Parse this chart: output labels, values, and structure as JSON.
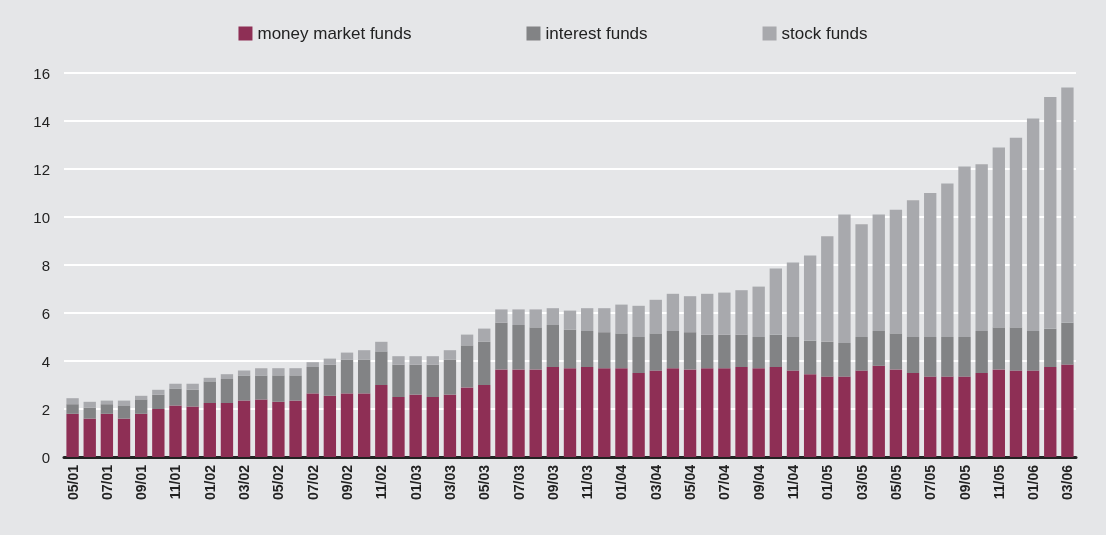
{
  "chart_data": {
    "type": "bar",
    "stacked": true,
    "categories": [
      "05/01",
      null,
      "07/01",
      null,
      "09/01",
      null,
      "11/01",
      null,
      "01/02",
      null,
      "03/02",
      null,
      "05/02",
      null,
      "07/02",
      null,
      "09/02",
      null,
      "11/02",
      null,
      "01/03",
      null,
      "03/03",
      null,
      "05/03",
      null,
      "07/03",
      null,
      "09/03",
      null,
      "11/03",
      null,
      "01/04",
      null,
      "03/04",
      null,
      "05/04",
      null,
      "07/04",
      null,
      "09/04",
      null,
      "11/04",
      null,
      "01/05",
      null,
      "03/05",
      null,
      "05/05",
      null,
      "07/05",
      null,
      "09/05",
      null,
      "11/05",
      null,
      "01/06",
      null,
      "03/06"
    ],
    "series": [
      {
        "name": "money market funds",
        "color": "#8e2f55",
        "values": [
          1.8,
          1.6,
          1.8,
          1.6,
          1.8,
          2.0,
          2.15,
          2.1,
          2.25,
          2.25,
          2.35,
          2.4,
          2.3,
          2.35,
          2.65,
          2.55,
          2.65,
          2.65,
          3.0,
          2.5,
          2.6,
          2.5,
          2.6,
          2.9,
          3.0,
          3.65,
          3.65,
          3.65,
          3.75,
          3.7,
          3.75,
          3.7,
          3.7,
          3.5,
          3.6,
          3.7,
          3.65,
          3.7,
          3.7,
          3.75,
          3.7,
          3.75,
          3.6,
          3.45,
          3.35,
          3.35,
          3.6,
          3.8,
          3.65,
          3.5,
          3.35,
          3.35,
          3.35,
          3.5,
          3.65,
          3.6,
          3.6,
          3.75,
          3.85
        ]
      },
      {
        "name": "interest funds",
        "color": "#828385",
        "values": [
          0.4,
          0.45,
          0.4,
          0.55,
          0.6,
          0.6,
          0.7,
          0.7,
          0.9,
          1.0,
          1.05,
          1.0,
          1.1,
          1.05,
          1.1,
          1.3,
          1.4,
          1.4,
          1.4,
          1.35,
          1.25,
          1.35,
          1.45,
          1.75,
          1.8,
          1.95,
          1.85,
          1.75,
          1.75,
          1.6,
          1.5,
          1.5,
          1.45,
          1.5,
          1.55,
          1.55,
          1.55,
          1.4,
          1.4,
          1.35,
          1.3,
          1.35,
          1.4,
          1.4,
          1.45,
          1.4,
          1.4,
          1.45,
          1.5,
          1.5,
          1.65,
          1.65,
          1.65,
          1.75,
          1.75,
          1.8,
          1.65,
          1.6,
          1.75
        ]
      },
      {
        "name": "stock funds",
        "color": "#a8a9ad",
        "values": [
          0.25,
          0.25,
          0.15,
          0.2,
          0.15,
          0.2,
          0.2,
          0.25,
          0.15,
          0.2,
          0.2,
          0.3,
          0.3,
          0.3,
          0.2,
          0.25,
          0.3,
          0.4,
          0.4,
          0.35,
          0.35,
          0.35,
          0.4,
          0.45,
          0.55,
          0.55,
          0.65,
          0.75,
          0.7,
          0.8,
          0.95,
          1.0,
          1.2,
          1.3,
          1.4,
          1.55,
          1.5,
          1.7,
          1.75,
          1.85,
          2.1,
          2.75,
          3.1,
          3.55,
          4.4,
          5.35,
          4.7,
          4.85,
          5.15,
          5.7,
          6.0,
          6.4,
          7.1,
          6.95,
          7.5,
          7.9,
          8.85,
          9.65,
          9.8
        ]
      }
    ],
    "ylim": [
      0,
      16
    ],
    "yticks": [
      0,
      2,
      4,
      6,
      8,
      10,
      12,
      14,
      16
    ],
    "grid": "y",
    "legend": "top"
  }
}
